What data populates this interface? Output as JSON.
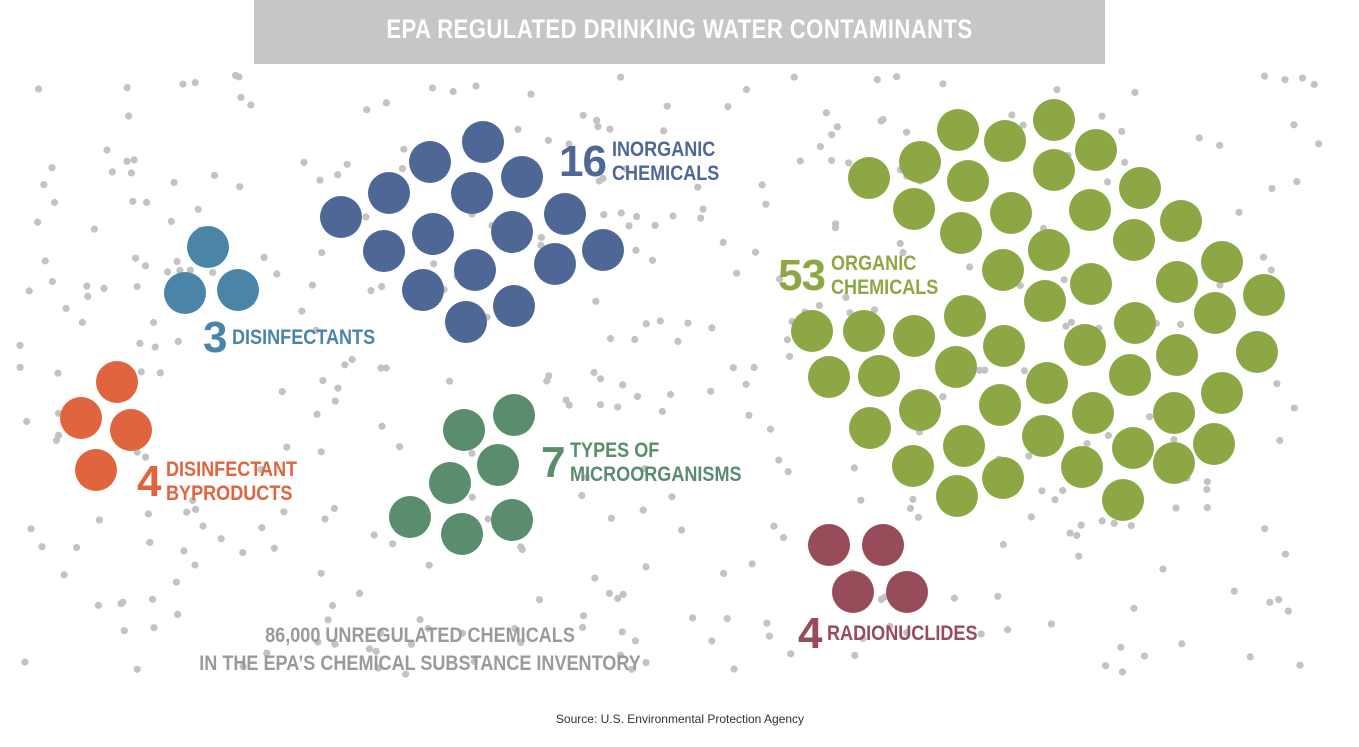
{
  "title": "EPA REGULATED DRINKING WATER CONTAMINANTS",
  "groups": {
    "inorganic": {
      "count": "16",
      "line1": "INORGANIC",
      "line2": "CHEMICALS",
      "color": "#4f6796"
    },
    "disinfectants": {
      "count": "3",
      "line1": "DISINFECTANTS",
      "color": "#4a85a8"
    },
    "byproducts": {
      "count": "4",
      "line1": "DISINFECTANT",
      "line2": "BYPRODUCTS",
      "color": "#e0653e"
    },
    "microorganisms": {
      "count": "7",
      "line1": "TYPES OF",
      "line2": "MICROORGANISMS",
      "color": "#5a8c6e"
    },
    "organic": {
      "count": "53",
      "line1": "ORGANIC",
      "line2": "CHEMICALS",
      "color": "#8ea745"
    },
    "radionuclides": {
      "count": "4",
      "line1": "RADIONUCLIDES",
      "color": "#984b59"
    }
  },
  "unregulated": {
    "line1": "86,000 UNREGULATED CHEMICALS",
    "line2": "IN THE EPA’S CHEMICAL SUBSTANCE INVENTORY",
    "color": "#c3c3c3"
  },
  "source": "Source: U.S. Environmental Protection Agency"
}
